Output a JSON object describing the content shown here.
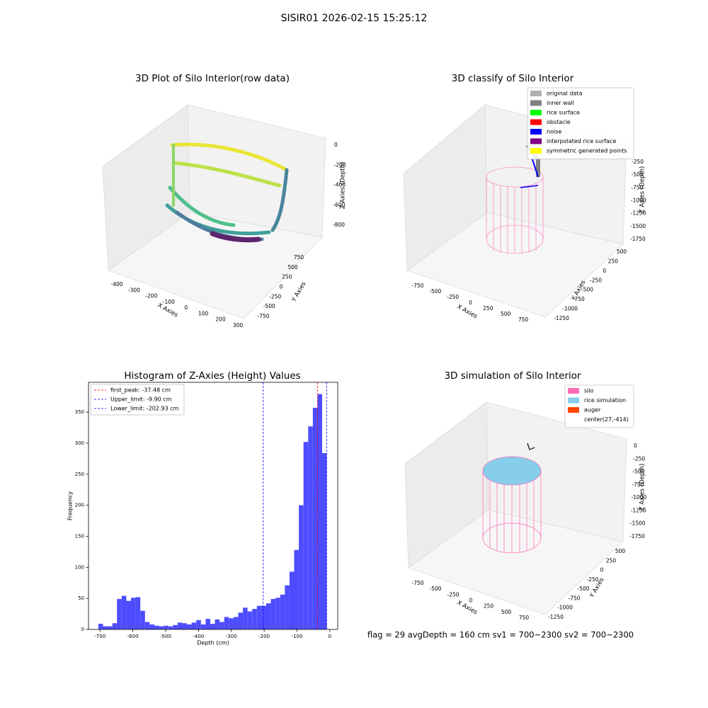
{
  "title": "SISIR01 2026-02-15 15:25:12",
  "footer": "flag = 29  avgDepth = 160 cm  sv1 = 700~2300  sv2 = 700~2300",
  "chart_data": [
    {
      "type": "scatter3d",
      "title": "3D Plot of Silo Interior(row data)",
      "xlabel": "X Axies",
      "ylabel": "Y Axies",
      "zlabel": "Z Axies (Depth)",
      "xticks": [
        -400,
        -300,
        -200,
        -100,
        0,
        100,
        200,
        300
      ],
      "yticks": [
        -750,
        -500,
        -250,
        0,
        250,
        500,
        750
      ],
      "zticks": [
        0,
        -200,
        -400,
        -600,
        -800
      ]
    },
    {
      "type": "scatter3d",
      "title": "3D classify of Silo Interior",
      "xlabel": "X Axies",
      "ylabel": "Y Axies",
      "zlabel": "Z Axies (Depth)",
      "xticks": [
        -750,
        -500,
        -250,
        0,
        250,
        500,
        750
      ],
      "yticks": [
        -1250,
        -1000,
        -750,
        -500,
        -250,
        0,
        250,
        500
      ],
      "zticks": [
        -250,
        -500,
        -750,
        -1000,
        -1250,
        -1500,
        -1750
      ],
      "legend": [
        {
          "name": "original data",
          "color": "#b0b0b0"
        },
        {
          "name": "inner wall",
          "color": "#808080"
        },
        {
          "name": "rice surface",
          "color": "#00ff00"
        },
        {
          "name": "obstacle",
          "color": "#ff0000"
        },
        {
          "name": "noise",
          "color": "#0000ff"
        },
        {
          "name": "interpolated rice surface",
          "color": "#800080"
        },
        {
          "name": "symmetric generated points",
          "color": "#ffff00"
        }
      ]
    },
    {
      "type": "histogram",
      "title": "Histogram of Z-Axies (Height) Values",
      "xlabel": "Depth (cm)",
      "ylabel": "Frequency",
      "color": "#4d4dff",
      "bins": [
        -705,
        -690.8,
        -676.6,
        -662.4,
        -648.2,
        -634,
        -619.8,
        -605.6,
        -591.4,
        -577.2,
        -563,
        -548.8,
        -534.6,
        -520.4,
        -506.2,
        -492,
        -477.8,
        -463.6,
        -449.4,
        -435.2,
        -421,
        -406.8,
        -392.6,
        -378.4,
        -364.2,
        -350,
        -335.8,
        -321.6,
        -307.4,
        -293.2,
        -279,
        -264.8,
        -250.6,
        -236.4,
        -222.2,
        -208,
        -193.8,
        -179.6,
        -165.4,
        -151.2,
        -137,
        -122.8,
        -108.6,
        -94.4,
        -80.2,
        -66,
        -51.8,
        -37.6,
        -23.4,
        -9.2
      ],
      "values": [
        9,
        5,
        5,
        10,
        49,
        54,
        46,
        51,
        52,
        30,
        12,
        8,
        6,
        5,
        6,
        5,
        7,
        11,
        10,
        8,
        11,
        15,
        8,
        17,
        9,
        16,
        12,
        20,
        18,
        20,
        27,
        35,
        29,
        33,
        38,
        38,
        42,
        49,
        51,
        56,
        71,
        93,
        128,
        200,
        302,
        327,
        357,
        379,
        284
      ],
      "xlim": [
        -735,
        24
      ],
      "ylim": [
        0,
        398
      ],
      "xticks": [
        -700,
        -600,
        -500,
        -400,
        -300,
        -200,
        -100,
        0
      ],
      "yticks": [
        0,
        50,
        100,
        150,
        200,
        250,
        300,
        350
      ],
      "vlines": [
        {
          "name": "first_peak: -37.48 cm",
          "value": -37.48,
          "color": "#ff0000"
        },
        {
          "name": "Upper_limit: -9.90 cm",
          "value": -9.9,
          "color": "#0000ff"
        },
        {
          "name": "Lower_limit: -202.93 cm",
          "value": -202.93,
          "color": "#0000ff"
        }
      ]
    },
    {
      "type": "scatter3d",
      "title": "3D simulation of Silo Interior",
      "xlabel": "X Axies",
      "ylabel": "Y Axies",
      "zlabel": "Z Axies (Depth)",
      "xticks": [
        -750,
        -500,
        -250,
        0,
        250,
        500,
        750
      ],
      "yticks": [
        -1250,
        -1000,
        -750,
        -500,
        -250,
        0,
        250,
        500
      ],
      "zticks": [
        0,
        -250,
        -500,
        -750,
        -1000,
        -1250,
        -1500,
        -1750
      ],
      "legend": [
        {
          "name": "silo",
          "color": "#ff69b4"
        },
        {
          "name": "rice simulation",
          "color": "#87ceeb"
        },
        {
          "name": "auger",
          "color": "#ff4500"
        },
        {
          "name": "center(27,-414)"
        }
      ]
    }
  ]
}
